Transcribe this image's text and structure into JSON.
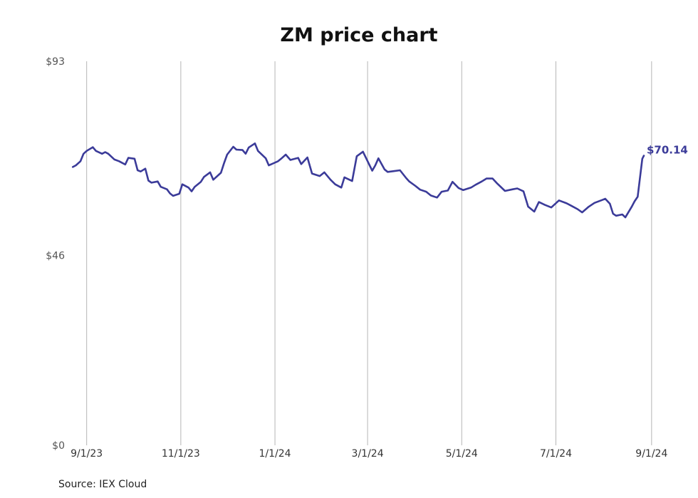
{
  "chart_data": {
    "type": "line",
    "title": "ZM price chart",
    "xlabel": "",
    "ylabel": "",
    "ylim": [
      0,
      93
    ],
    "y_ticks": [
      {
        "value": 0,
        "label": "$0"
      },
      {
        "value": 46,
        "label": "$46"
      },
      {
        "value": 93,
        "label": "$93"
      }
    ],
    "x_ticks": [
      {
        "date": "2023-09-01",
        "label": "9/1/23"
      },
      {
        "date": "2023-11-01",
        "label": "11/1/23"
      },
      {
        "date": "2024-01-01",
        "label": "1/1/24"
      },
      {
        "date": "2024-03-01",
        "label": "3/1/24"
      },
      {
        "date": "2024-05-01",
        "label": "5/1/24"
      },
      {
        "date": "2024-07-01",
        "label": "7/1/24"
      },
      {
        "date": "2024-09-01",
        "label": "9/1/24"
      }
    ],
    "xlim": [
      "2023-08-22",
      "2024-09-08"
    ],
    "grid": "vertical",
    "line_color": "#3b3b99",
    "last_value_label": "$70.14",
    "source": "Source: IEX Cloud",
    "series": [
      {
        "values": [
          [
            "2023-08-23",
            67.4
          ],
          [
            "2023-08-25",
            67.8
          ],
          [
            "2023-08-28",
            68.8
          ],
          [
            "2023-08-30",
            70.6
          ],
          [
            "2023-09-01",
            71.3
          ],
          [
            "2023-09-05",
            72.2
          ],
          [
            "2023-09-07",
            71.3
          ],
          [
            "2023-09-11",
            70.6
          ],
          [
            "2023-09-13",
            71.0
          ],
          [
            "2023-09-15",
            70.6
          ],
          [
            "2023-09-19",
            69.2
          ],
          [
            "2023-09-22",
            68.8
          ],
          [
            "2023-09-26",
            68.0
          ],
          [
            "2023-09-28",
            69.6
          ],
          [
            "2023-10-02",
            69.4
          ],
          [
            "2023-10-04",
            66.6
          ],
          [
            "2023-10-06",
            66.3
          ],
          [
            "2023-10-09",
            67.0
          ],
          [
            "2023-10-11",
            64.1
          ],
          [
            "2023-10-13",
            63.6
          ],
          [
            "2023-10-17",
            63.9
          ],
          [
            "2023-10-19",
            62.6
          ],
          [
            "2023-10-23",
            62.0
          ],
          [
            "2023-10-25",
            61.0
          ],
          [
            "2023-10-27",
            60.4
          ],
          [
            "2023-10-31",
            60.9
          ],
          [
            "2023-11-02",
            63.2
          ],
          [
            "2023-11-06",
            62.4
          ],
          [
            "2023-11-08",
            61.5
          ],
          [
            "2023-11-10",
            62.6
          ],
          [
            "2023-11-14",
            63.8
          ],
          [
            "2023-11-16",
            65.0
          ],
          [
            "2023-11-20",
            66.1
          ],
          [
            "2023-11-22",
            64.3
          ],
          [
            "2023-11-27",
            66.0
          ],
          [
            "2023-11-29",
            68.3
          ],
          [
            "2023-12-01",
            70.4
          ],
          [
            "2023-12-05",
            72.3
          ],
          [
            "2023-12-07",
            71.6
          ],
          [
            "2023-12-11",
            71.5
          ],
          [
            "2023-12-13",
            70.6
          ],
          [
            "2023-12-15",
            72.1
          ],
          [
            "2023-12-19",
            73.1
          ],
          [
            "2023-12-21",
            71.3
          ],
          [
            "2023-12-26",
            69.5
          ],
          [
            "2023-12-28",
            67.8
          ],
          [
            "2024-01-03",
            68.8
          ],
          [
            "2024-01-05",
            69.4
          ],
          [
            "2024-01-08",
            70.4
          ],
          [
            "2024-01-11",
            69.1
          ],
          [
            "2024-01-16",
            69.6
          ],
          [
            "2024-01-18",
            68.1
          ],
          [
            "2024-01-22",
            69.7
          ],
          [
            "2024-01-25",
            65.8
          ],
          [
            "2024-01-30",
            65.2
          ],
          [
            "2024-02-02",
            66.1
          ],
          [
            "2024-02-06",
            64.3
          ],
          [
            "2024-02-09",
            63.2
          ],
          [
            "2024-02-13",
            62.4
          ],
          [
            "2024-02-15",
            64.9
          ],
          [
            "2024-02-20",
            64.0
          ],
          [
            "2024-02-23",
            70.0
          ],
          [
            "2024-02-27",
            71.1
          ],
          [
            "2024-03-04",
            66.5
          ],
          [
            "2024-03-06",
            67.8
          ],
          [
            "2024-03-08",
            69.5
          ],
          [
            "2024-03-12",
            66.8
          ],
          [
            "2024-03-14",
            66.2
          ],
          [
            "2024-03-18",
            66.4
          ],
          [
            "2024-03-22",
            66.6
          ],
          [
            "2024-03-26",
            64.7
          ],
          [
            "2024-03-28",
            63.9
          ],
          [
            "2024-04-01",
            62.8
          ],
          [
            "2024-04-04",
            61.9
          ],
          [
            "2024-04-08",
            61.4
          ],
          [
            "2024-04-11",
            60.5
          ],
          [
            "2024-04-15",
            60.0
          ],
          [
            "2024-04-18",
            61.4
          ],
          [
            "2024-04-22",
            61.7
          ],
          [
            "2024-04-25",
            63.8
          ],
          [
            "2024-04-29",
            62.3
          ],
          [
            "2024-05-02",
            61.8
          ],
          [
            "2024-05-07",
            62.4
          ],
          [
            "2024-05-10",
            63.1
          ],
          [
            "2024-05-14",
            63.9
          ],
          [
            "2024-05-17",
            64.6
          ],
          [
            "2024-05-21",
            64.6
          ],
          [
            "2024-05-24",
            63.4
          ],
          [
            "2024-05-29",
            61.6
          ],
          [
            "2024-06-03",
            62.0
          ],
          [
            "2024-06-06",
            62.2
          ],
          [
            "2024-06-10",
            61.5
          ],
          [
            "2024-06-13",
            57.8
          ],
          [
            "2024-06-17",
            56.6
          ],
          [
            "2024-06-20",
            58.9
          ],
          [
            "2024-06-24",
            58.2
          ],
          [
            "2024-06-28",
            57.6
          ],
          [
            "2024-07-03",
            59.3
          ],
          [
            "2024-07-08",
            58.6
          ],
          [
            "2024-07-11",
            58.0
          ],
          [
            "2024-07-15",
            57.2
          ],
          [
            "2024-07-18",
            56.4
          ],
          [
            "2024-07-22",
            57.7
          ],
          [
            "2024-07-26",
            58.7
          ],
          [
            "2024-07-31",
            59.4
          ],
          [
            "2024-08-02",
            59.7
          ],
          [
            "2024-08-05",
            58.5
          ],
          [
            "2024-08-07",
            56.1
          ],
          [
            "2024-08-09",
            55.6
          ],
          [
            "2024-08-13",
            55.9
          ],
          [
            "2024-08-15",
            55.2
          ],
          [
            "2024-08-19",
            57.7
          ],
          [
            "2024-08-21",
            59.1
          ],
          [
            "2024-08-23",
            60.2
          ],
          [
            "2024-08-26",
            69.4
          ],
          [
            "2024-08-27",
            70.14
          ]
        ]
      }
    ]
  }
}
